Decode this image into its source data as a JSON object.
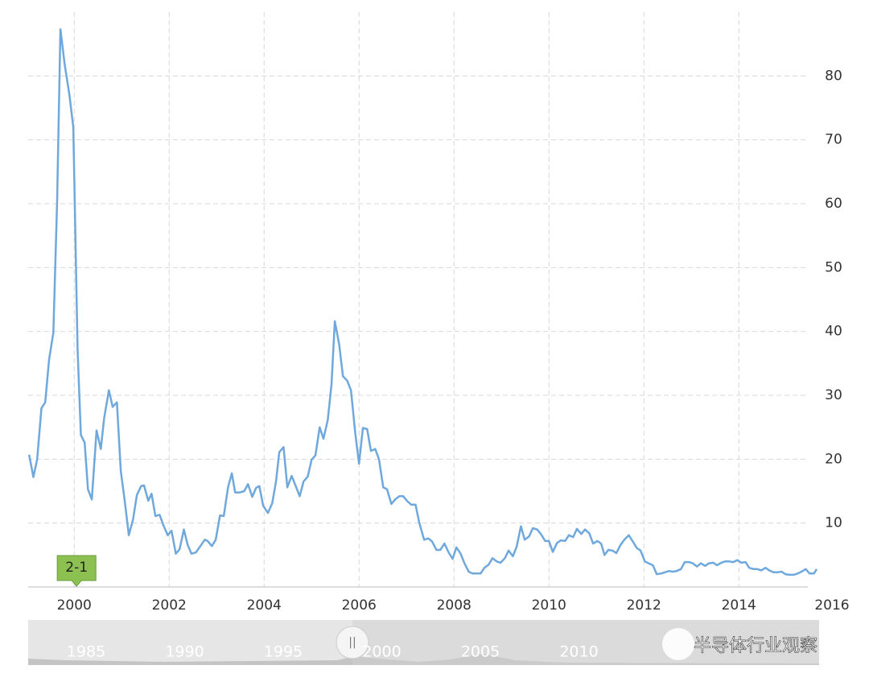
{
  "chart_data": {
    "type": "line",
    "x": [
      1999.05,
      1999.14,
      1999.22,
      1999.31,
      1999.39,
      1999.47,
      1999.56,
      1999.64,
      1999.71,
      1999.8,
      1999.9,
      1999.98,
      2000.07,
      2000.14,
      2000.22,
      2000.29,
      2000.37,
      2000.47,
      2000.56,
      2000.63,
      2000.73,
      2000.81,
      2000.9,
      2000.98,
      2001.07,
      2001.15,
      2001.24,
      2001.32,
      2001.41,
      2001.47,
      2001.56,
      2001.63,
      2001.71,
      2001.8,
      2001.88,
      2001.97,
      2002.05,
      2002.14,
      2002.22,
      2002.31,
      2002.39,
      2002.47,
      2002.56,
      2002.64,
      2002.75,
      2002.81,
      2002.9,
      2002.98,
      2003.07,
      2003.15,
      2003.24,
      2003.32,
      2003.39,
      2003.49,
      2003.58,
      2003.66,
      2003.75,
      2003.83,
      2003.9,
      2003.98,
      2004.08,
      2004.17,
      2004.25,
      2004.32,
      2004.41,
      2004.49,
      2004.58,
      2004.66,
      2004.75,
      2004.83,
      2004.92,
      2005.0,
      2005.08,
      2005.17,
      2005.25,
      2005.34,
      2005.42,
      2005.49,
      2005.58,
      2005.66,
      2005.75,
      2005.83,
      2005.92,
      2006.0,
      2006.08,
      2006.17,
      2006.25,
      2006.34,
      2006.42,
      2006.51,
      2006.59,
      2006.68,
      2006.76,
      2006.85,
      2006.93,
      2007.02,
      2007.1,
      2007.19,
      2007.27,
      2007.37,
      2007.46,
      2007.54,
      2007.63,
      2007.71,
      2007.8,
      2007.88,
      2007.97,
      2008.05,
      2008.14,
      2008.22,
      2008.31,
      2008.39,
      2008.47,
      2008.56,
      2008.64,
      2008.73,
      2008.81,
      2008.9,
      2008.98,
      2009.07,
      2009.15,
      2009.24,
      2009.32,
      2009.41,
      2009.49,
      2009.58,
      2009.66,
      2009.75,
      2009.83,
      2009.92,
      2010.0,
      2010.08,
      2010.17,
      2010.25,
      2010.34,
      2010.42,
      2010.51,
      2010.59,
      2010.68,
      2010.76,
      2010.85,
      2010.93,
      2011.02,
      2011.1,
      2011.17,
      2011.25,
      2011.34,
      2011.42,
      2011.51,
      2011.59,
      2011.68,
      2011.76,
      2011.85,
      2011.93,
      2012.02,
      2012.1,
      2012.19,
      2012.27,
      2012.36,
      2012.44,
      2012.53,
      2012.61,
      2012.69,
      2012.78,
      2012.86,
      2012.95,
      2013.03,
      2013.12,
      2013.2,
      2013.29,
      2013.37,
      2013.46,
      2013.54,
      2013.63,
      2013.71,
      2013.8,
      2013.88,
      2013.97,
      2014.05,
      2014.14,
      2014.22,
      2014.31,
      2014.39,
      2014.47,
      2014.56,
      2014.64,
      2014.73,
      2014.81,
      2014.9,
      2014.98,
      2015.07,
      2015.15,
      2015.24,
      2015.32,
      2015.41,
      2015.49,
      2015.58,
      2015.64
    ],
    "series": [
      {
        "color": "#6fa8dc",
        "values": [
          20.7,
          17.2,
          20,
          28,
          28.9,
          35.6,
          39.8,
          60.4,
          87.3,
          81.8,
          77,
          72,
          37.3,
          23.8,
          22.6,
          15.3,
          13.7,
          24.5,
          21.6,
          26.4,
          30.8,
          28.2,
          28.9,
          18.2,
          13.1,
          8.1,
          10.6,
          14.4,
          15.8,
          15.9,
          13.5,
          14.6,
          11.1,
          11.3,
          9.6,
          8.1,
          8.8,
          5.2,
          5.9,
          9,
          6.6,
          5.2,
          5.4,
          6.2,
          7.4,
          7.2,
          6.4,
          7.4,
          11.2,
          11.1,
          15.6,
          17.8,
          14.8,
          14.8,
          15,
          16.1,
          14.1,
          15.5,
          15.8,
          12.7,
          11.6,
          13.1,
          16.5,
          21.1,
          21.9,
          15.6,
          17.4,
          15.9,
          14.2,
          16.5,
          17.3,
          19.9,
          20.6,
          25,
          23.2,
          26.1,
          31.7,
          41.6,
          38,
          33,
          32.3,
          30.8,
          24.1,
          19.3,
          24.9,
          24.7,
          21.3,
          21.6,
          20,
          15.6,
          15.3,
          13,
          13.7,
          14.2,
          14.2,
          13.4,
          12.9,
          12.9,
          10,
          7.4,
          7.6,
          7.1,
          5.8,
          5.8,
          6.8,
          5.5,
          4.4,
          6.2,
          5.2,
          3.7,
          2.4,
          2.1,
          2.1,
          2.1,
          3,
          3.5,
          4.5,
          4,
          3.8,
          4.5,
          5.7,
          4.8,
          6.3,
          9.5,
          7.4,
          7.9,
          9.2,
          9,
          8.3,
          7.2,
          7.2,
          5.5,
          6.9,
          7.3,
          7.2,
          8.1,
          7.8,
          9.1,
          8.3,
          9,
          8.4,
          6.8,
          7.2,
          6.8,
          5,
          5.8,
          5.7,
          5.3,
          6.6,
          7.4,
          8.1,
          7.2,
          6.1,
          5.7,
          4,
          3.7,
          3.4,
          2,
          2.1,
          2.3,
          2.5,
          2.4,
          2.5,
          2.8,
          3.9,
          3.9,
          3.7,
          3.2,
          3.7,
          3.3,
          3.7,
          3.8,
          3.4,
          3.8,
          4,
          4,
          3.9,
          4.2,
          3.8,
          3.9,
          3,
          2.8,
          2.8,
          2.6,
          3,
          2.6,
          2.3,
          2.3,
          2.4,
          2,
          1.9,
          1.9,
          2.1,
          2.4,
          2.8,
          2.1,
          2.1,
          2.8
        ]
      }
    ],
    "xlim": [
      1999.03,
      2015.64
    ],
    "xticks": [
      2000,
      2002,
      2004,
      2006,
      2008,
      2010,
      2012,
      2014,
      2016
    ],
    "ylim": [
      0,
      90
    ],
    "yticks": [
      10,
      20,
      30,
      40,
      50,
      60,
      70,
      80
    ],
    "grid": true,
    "annotation": {
      "text": "2-1",
      "x": 2000.05
    },
    "navigator": {
      "labels": [
        "1985",
        "1990",
        "1995",
        "2000",
        "2005",
        "2010"
      ]
    },
    "watermark": "半导体行业观察"
  }
}
